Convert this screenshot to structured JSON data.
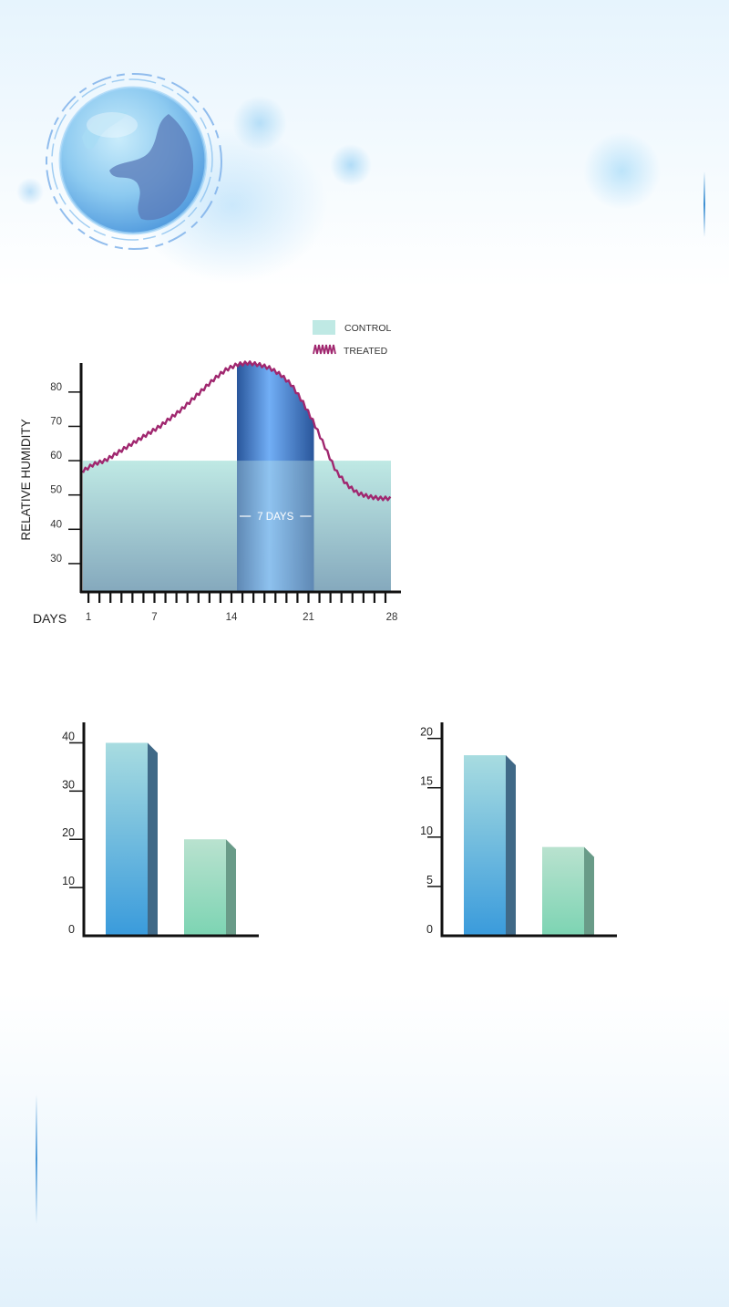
{
  "colors": {
    "control_fill": "#bfe9e4",
    "control_fill_bottom": "#85a9bd",
    "treated_line": "#a0276f",
    "highlight_mid": "#6aaaf5",
    "highlight_edge": "#1e4d96",
    "axis": "#111111",
    "bar_blue_top": "#a8dce0",
    "bar_blue_bottom": "#3a9bdc",
    "bar_green_top": "#b9e2cf",
    "bar_green_bottom": "#7dd4b3"
  },
  "decor": {
    "globe": "earth-globe-icon"
  },
  "chart_data": [
    {
      "type": "area",
      "legend_position": "top-right",
      "legend": {
        "control": "CONTROL",
        "treated": "TREATED"
      },
      "ylabel": "RELATIVE HUMIDITY",
      "xlabel": "DAYS",
      "yticks": [
        30,
        40,
        50,
        60,
        70,
        80
      ],
      "ylim": [
        22,
        89
      ],
      "xticks": [
        1,
        7,
        14,
        21,
        28
      ],
      "xlim": [
        0.0,
        28.0
      ],
      "tick_days": [
        1,
        2,
        3,
        4,
        5,
        6,
        7,
        8,
        9,
        10,
        11,
        12,
        13,
        14,
        15,
        16,
        17,
        18,
        19,
        20,
        21,
        22,
        23,
        24,
        25,
        26,
        27,
        28
      ],
      "control": {
        "x_range": [
          0,
          28
        ],
        "value": 60
      },
      "treated": {
        "x": [
          0,
          1,
          2,
          3,
          4,
          5,
          6,
          7,
          8,
          9,
          10,
          11,
          12,
          13,
          14,
          15,
          16,
          17,
          18,
          19,
          20,
          21,
          22,
          23,
          24,
          25,
          26,
          27,
          28
        ],
        "y": [
          57,
          59,
          60,
          62,
          64,
          66,
          68,
          70,
          72.5,
          75,
          78,
          81,
          84,
          86.5,
          88,
          88.5,
          88,
          87,
          85,
          82,
          77,
          71,
          64,
          57,
          53,
          50.5,
          49.5,
          49,
          49
        ]
      },
      "highlight": {
        "start_day": 14,
        "end_day": 21,
        "label": "7 DAYS"
      }
    },
    {
      "type": "bar",
      "yticks": [
        0,
        10,
        20,
        30,
        40
      ],
      "ylim": [
        0,
        45
      ],
      "values": [
        40,
        20
      ]
    },
    {
      "type": "bar",
      "yticks": [
        0,
        5,
        10,
        15,
        20
      ],
      "ylim": [
        0,
        22
      ],
      "values": [
        18.3,
        9
      ]
    }
  ]
}
